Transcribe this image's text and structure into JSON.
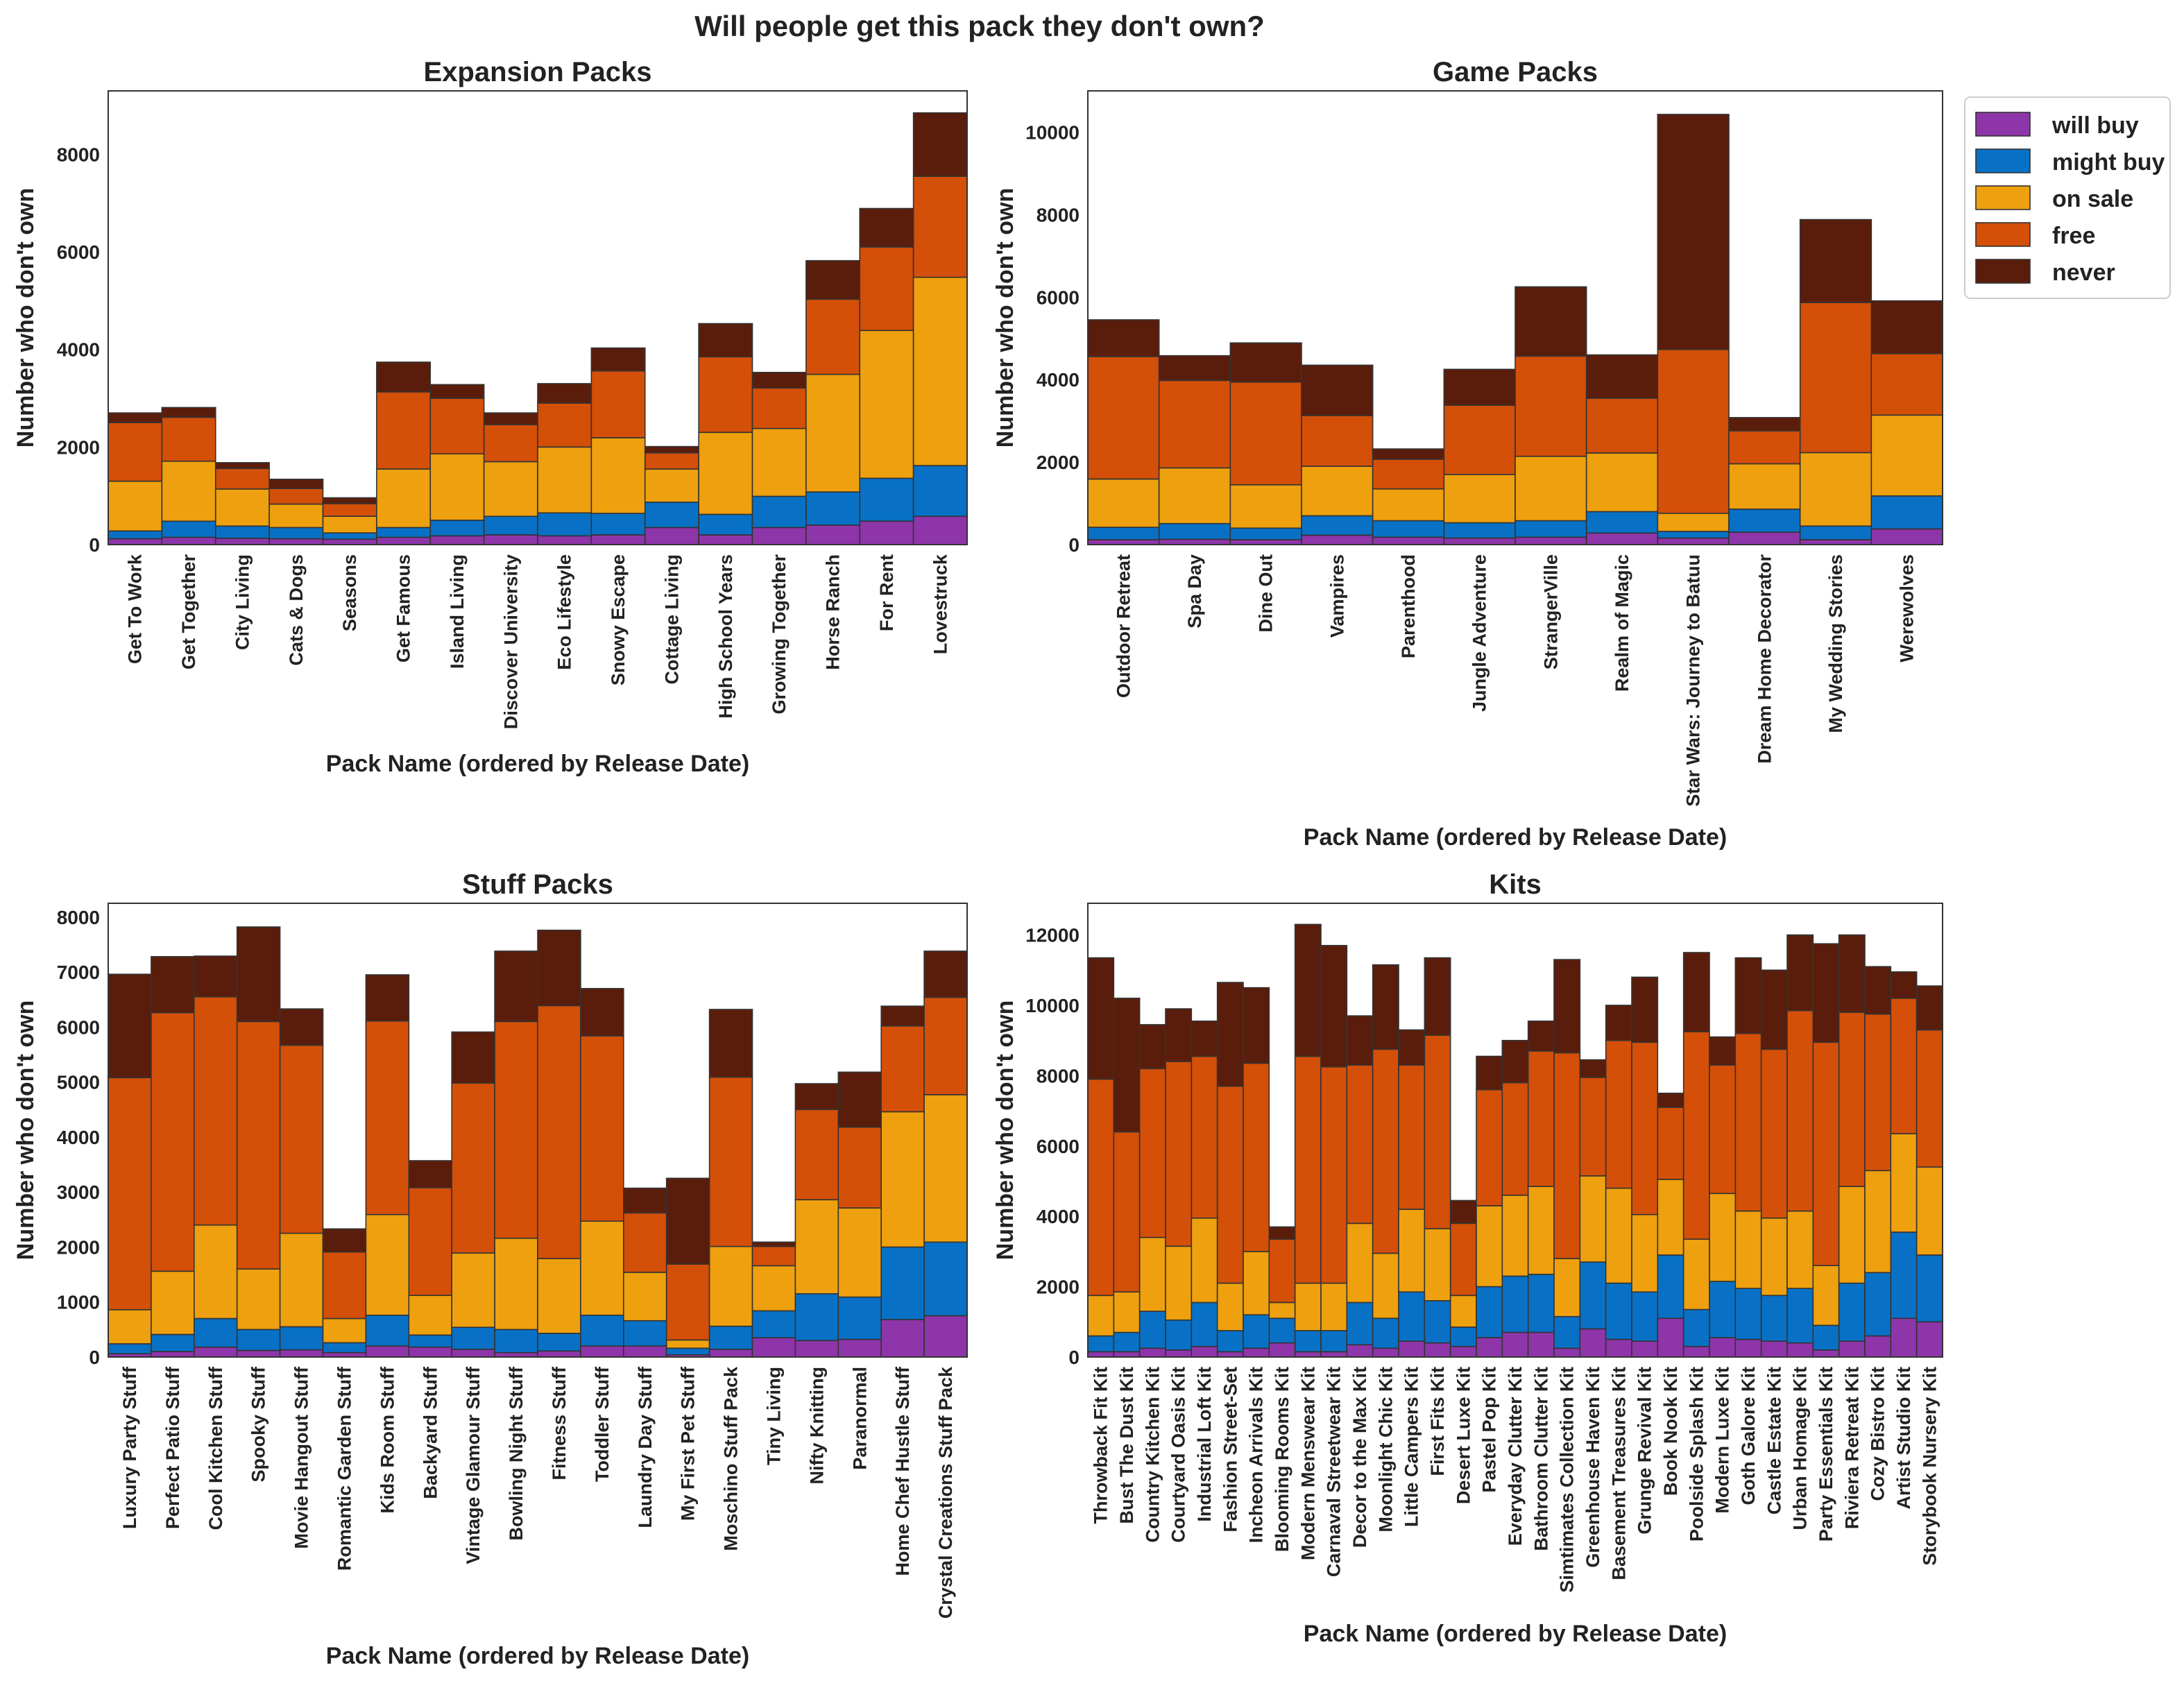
{
  "title": "Will people get this pack they don't own?",
  "legend": {
    "placement": "outside-right of top-right panel",
    "entries": [
      {
        "label": "will buy",
        "color": "#8e35a9"
      },
      {
        "label": "might buy",
        "color": "#0871c6"
      },
      {
        "label": "on sale",
        "color": "#eea00e"
      },
      {
        "label": "free",
        "color": "#d44f08"
      },
      {
        "label": "never",
        "color": "#5b1d0b"
      }
    ]
  },
  "chart_data": [
    {
      "type": "bar",
      "stacked": true,
      "title": "Expansion Packs",
      "xlabel": "Pack Name (ordered by Release Date)",
      "ylabel": "Number who don't own",
      "ylim": [
        0,
        9300
      ],
      "yticks": [
        0,
        2000,
        4000,
        6000,
        8000
      ],
      "categories": [
        "Get To Work",
        "Get Together",
        "City Living",
        "Cats & Dogs",
        "Seasons",
        "Get Famous",
        "Island Living",
        "Discover University",
        "Eco Lifestyle",
        "Snowy Escape",
        "Cottage Living",
        "High School Years",
        "Growing Together",
        "Horse Ranch",
        "For Rent",
        "Lovestruck"
      ],
      "series": [
        {
          "name": "will buy",
          "values": [
            120,
            150,
            130,
            120,
            110,
            150,
            180,
            200,
            180,
            200,
            350,
            200,
            350,
            400,
            480,
            580
          ]
        },
        {
          "name": "might buy",
          "values": [
            160,
            330,
            250,
            230,
            130,
            200,
            320,
            380,
            470,
            440,
            520,
            420,
            640,
            680,
            880,
            1040
          ]
        },
        {
          "name": "on sale",
          "values": [
            1020,
            1230,
            760,
            480,
            340,
            1200,
            1360,
            1120,
            1350,
            1550,
            680,
            1680,
            1390,
            2410,
            3030,
            3860
          ]
        },
        {
          "name": "free",
          "values": [
            1200,
            900,
            420,
            320,
            260,
            1580,
            1140,
            760,
            900,
            1370,
            330,
            1550,
            830,
            1540,
            1710,
            2070
          ]
        },
        {
          "name": "never",
          "values": [
            200,
            200,
            120,
            190,
            120,
            610,
            280,
            240,
            400,
            470,
            130,
            680,
            320,
            790,
            790,
            1300
          ]
        }
      ]
    },
    {
      "type": "bar",
      "stacked": true,
      "title": "Game Packs",
      "xlabel": "Pack Name (ordered by Release Date)",
      "ylabel": "Number who don't own",
      "ylim": [
        0,
        11000
      ],
      "yticks": [
        0,
        2000,
        4000,
        6000,
        8000,
        10000
      ],
      "categories": [
        "Outdoor Retreat",
        "Spa Day",
        "Dine Out",
        "Vampires",
        "Parenthood",
        "Jungle Adventure",
        "StrangerVille",
        "Realm of Magic",
        "Star Wars: Journey to Batuu",
        "Dream Home Decorator",
        "My Wedding Stories",
        "Werewolves"
      ],
      "series": [
        {
          "name": "will buy",
          "values": [
            120,
            130,
            120,
            230,
            180,
            160,
            180,
            280,
            160,
            300,
            120,
            380
          ]
        },
        {
          "name": "might buy",
          "values": [
            300,
            380,
            280,
            470,
            400,
            370,
            400,
            520,
            160,
            560,
            330,
            800
          ]
        },
        {
          "name": "on sale",
          "values": [
            1170,
            1350,
            1050,
            1200,
            770,
            1170,
            1560,
            1420,
            440,
            1100,
            1780,
            1960
          ]
        },
        {
          "name": "free",
          "values": [
            2970,
            2120,
            2490,
            1230,
            720,
            1680,
            2430,
            1330,
            3970,
            800,
            3640,
            1490
          ]
        },
        {
          "name": "never",
          "values": [
            890,
            600,
            950,
            1220,
            250,
            870,
            1680,
            1050,
            5700,
            320,
            2010,
            1280
          ]
        }
      ]
    },
    {
      "type": "bar",
      "stacked": true,
      "title": "Stuff Packs",
      "xlabel": "Pack Name (ordered by Release Date)",
      "ylabel": "Number who don't own",
      "ylim": [
        0,
        8250
      ],
      "yticks": [
        0,
        1000,
        2000,
        3000,
        4000,
        5000,
        6000,
        7000,
        8000
      ],
      "categories": [
        "Luxury Party Stuff",
        "Perfect Patio Stuff",
        "Cool Kitchen Stuff",
        "Spooky Stuff",
        "Movie Hangout Stuff",
        "Romantic Garden Stuff",
        "Kids Room Stuff",
        "Backyard Stuff",
        "Vintage Glamour Stuff",
        "Bowling Night Stuff",
        "Fitness Stuff",
        "Toddler Stuff",
        "Laundry Day Stuff",
        "My First Pet Stuff",
        "Moschino Stuff Pack",
        "Tiny Living",
        "Nifty Knitting",
        "Paranormal",
        "Home Chef Hustle Stuff",
        "Crystal Creations Stuff Pack"
      ],
      "series": [
        {
          "name": "will buy",
          "values": [
            60,
            100,
            180,
            120,
            130,
            80,
            200,
            180,
            140,
            80,
            110,
            200,
            200,
            40,
            140,
            350,
            300,
            320,
            680,
            750
          ]
        },
        {
          "name": "might buy",
          "values": [
            180,
            310,
            520,
            380,
            420,
            180,
            560,
            220,
            400,
            420,
            320,
            560,
            460,
            120,
            420,
            490,
            850,
            770,
            1320,
            1340
          ]
        },
        {
          "name": "on sale",
          "values": [
            620,
            1150,
            1700,
            1100,
            1700,
            440,
            1830,
            720,
            1350,
            1660,
            1360,
            1710,
            880,
            150,
            1450,
            820,
            1710,
            1620,
            2460,
            2680
          ]
        },
        {
          "name": "free",
          "values": [
            4220,
            4700,
            4150,
            4500,
            3420,
            1210,
            3520,
            1960,
            3090,
            3940,
            4600,
            3370,
            1080,
            1380,
            3080,
            350,
            1640,
            1470,
            1560,
            1770
          ]
        },
        {
          "name": "never",
          "values": [
            1880,
            1020,
            740,
            1720,
            660,
            420,
            840,
            490,
            930,
            1280,
            1370,
            860,
            450,
            1560,
            1230,
            80,
            470,
            1000,
            360,
            840
          ]
        }
      ]
    },
    {
      "type": "bar",
      "stacked": true,
      "title": "Kits",
      "xlabel": "Pack Name (ordered by Release Date)",
      "ylabel": "Number who don't own",
      "ylim": [
        0,
        12900
      ],
      "yticks": [
        0,
        2000,
        4000,
        6000,
        8000,
        10000,
        12000
      ],
      "categories": [
        "Throwback Fit Kit",
        "Bust The Dust Kit",
        "Country Kitchen Kit",
        "Courtyard Oasis Kit",
        "Industrial Loft Kit",
        "Fashion Street-Set",
        "Incheon Arrivals Kit",
        "Blooming Rooms Kit",
        "Modern Menswear Kit",
        "Carnaval Streetwear Kit",
        "Decor to the Max Kit",
        "Moonlight Chic Kit",
        "Little Campers Kit",
        "First Fits Kit",
        "Desert Luxe Kit",
        "Pastel Pop Kit",
        "Everyday Clutter Kit",
        "Bathroom Clutter Kit",
        "Simtimates Collection Kit",
        "Greenhouse Haven Kit",
        "Basement Treasures Kit",
        "Grunge Revival Kit",
        "Book Nook Kit",
        "Poolside Splash Kit",
        "Modern Luxe Kit",
        "Goth Galore Kit",
        "Castle Estate Kit",
        "Urban Homage Kit",
        "Party Essentials Kit",
        "Riviera Retreat Kit",
        "Cozy Bistro Kit",
        "Artist Studio Kit",
        "Storybook Nursery Kit"
      ],
      "series": [
        {
          "name": "will buy",
          "values": [
            150,
            150,
            250,
            200,
            300,
            150,
            250,
            400,
            150,
            150,
            350,
            250,
            450,
            400,
            300,
            550,
            700,
            700,
            250,
            800,
            500,
            450,
            1100,
            300,
            550,
            500,
            450,
            400,
            200,
            450,
            600,
            1100,
            1000
          ]
        },
        {
          "name": "might buy",
          "values": [
            450,
            550,
            1050,
            850,
            1250,
            600,
            950,
            700,
            600,
            600,
            1200,
            850,
            1400,
            1200,
            550,
            1450,
            1600,
            1650,
            900,
            1900,
            1600,
            1400,
            1800,
            1050,
            1600,
            1450,
            1300,
            1550,
            700,
            1650,
            1800,
            2450,
            1900
          ]
        },
        {
          "name": "on sale",
          "values": [
            1150,
            1150,
            2100,
            2100,
            2400,
            1350,
            1800,
            450,
            1350,
            1350,
            2250,
            1850,
            2350,
            2050,
            900,
            2300,
            2300,
            2500,
            1650,
            2450,
            2700,
            2200,
            2150,
            2000,
            2500,
            2200,
            2200,
            2200,
            1700,
            2750,
            2900,
            2800,
            2500
          ]
        },
        {
          "name": "free",
          "values": [
            6150,
            4550,
            4800,
            5250,
            4600,
            5600,
            5350,
            1800,
            6450,
            6150,
            4500,
            5800,
            4100,
            5500,
            2050,
            3300,
            3200,
            3850,
            5850,
            2800,
            4200,
            4900,
            2050,
            5900,
            3650,
            5050,
            4800,
            5700,
            6350,
            4950,
            4450,
            3850,
            3900
          ]
        },
        {
          "name": "never",
          "values": [
            3450,
            3800,
            1250,
            1500,
            1000,
            2950,
            2150,
            350,
            3750,
            3450,
            1400,
            2400,
            1000,
            2200,
            650,
            950,
            1200,
            850,
            2650,
            500,
            1000,
            1850,
            400,
            2250,
            800,
            2150,
            2250,
            2150,
            2800,
            2200,
            1350,
            750,
            1250
          ]
        }
      ]
    }
  ]
}
